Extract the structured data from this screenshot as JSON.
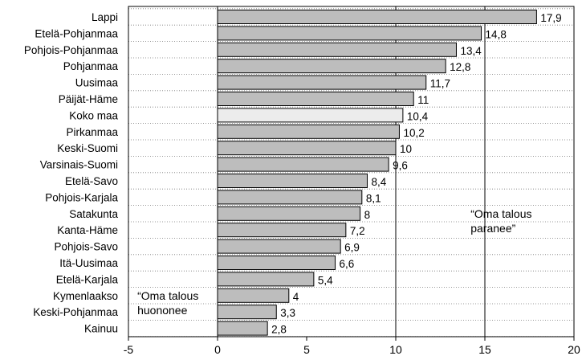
{
  "chart_data": {
    "type": "bar",
    "orientation": "horizontal",
    "categories": [
      "Lappi",
      "Etelä-Pohjanmaa",
      "Pohjois-Pohjanmaa",
      "Pohjanmaa",
      "Uusimaa",
      "Päijät-Häme",
      "Koko maa",
      "Pirkanmaa",
      "Keski-Suomi",
      "Varsinais-Suomi",
      "Etelä-Savo",
      "Pohjois-Karjala",
      "Satakunta",
      "Kanta-Häme",
      "Pohjois-Savo",
      "Itä-Uusimaa",
      "Etelä-Karjala",
      "Kymenlaakso",
      "Keski-Pohjanmaa",
      "Kainuu"
    ],
    "values": [
      17.9,
      14.8,
      13.4,
      12.8,
      11.7,
      11,
      10.4,
      10.2,
      10,
      9.6,
      8.4,
      8.1,
      8,
      7.2,
      6.9,
      6.6,
      5.4,
      4,
      3.3,
      2.8
    ],
    "value_labels": [
      "17,9",
      "14,8",
      "13,4",
      "12,8",
      "11,7",
      "11",
      "10,4",
      "10,2",
      "10",
      "9,6",
      "8,4",
      "8,1",
      "8",
      "7,2",
      "6,9",
      "6,6",
      "5,4",
      "4",
      "3,3",
      "2,8"
    ],
    "highlight_category": "Koko maa",
    "xlim": [
      -5,
      20
    ],
    "xticks": [
      -5,
      0,
      5,
      10,
      15,
      20
    ],
    "xtick_labels": [
      "-5",
      "0",
      "5",
      "10",
      "15",
      "20"
    ],
    "vertical_lines_at": [
      0,
      10,
      15
    ],
    "grid": "dotted horizontal rows",
    "colors": {
      "bar": "#bdbdbd",
      "highlight_bar": "#ececec",
      "bar_edge": "#000000"
    },
    "annotations": [
      {
        "lines": [
          "“Oma talous",
          "paranee”"
        ],
        "at_x": 14.2,
        "near_category": "Satakunta"
      },
      {
        "lines": [
          "“Oma talous",
          "huononee"
        ],
        "at_x": -4.5,
        "near_category": "Kymenlaakso"
      }
    ]
  }
}
